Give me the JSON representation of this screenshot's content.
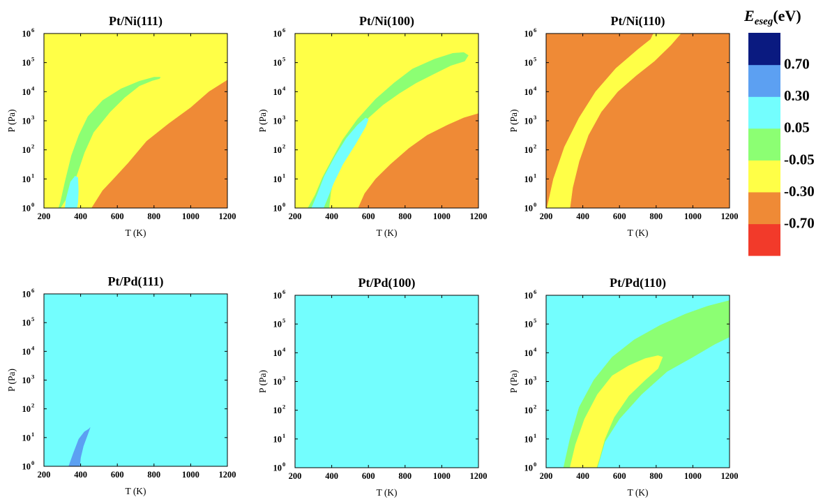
{
  "chart_data": {
    "type": "heatmap",
    "x_tick_labels": [
      "200",
      "400",
      "600",
      "800",
      "1000",
      "1200"
    ],
    "y_tick_base": "10",
    "y_tick_exponents": [
      "0",
      "1",
      "2",
      "3",
      "4",
      "5",
      "6"
    ],
    "xlim": [
      200,
      1200
    ],
    "ylim": [
      1,
      1000000
    ],
    "yscale": "log",
    "colorbar": {
      "title_symbol": "E",
      "title_subscript": "eseg",
      "title_unit": "(eV)",
      "bins": [
        {
          "color": "#F23A2A",
          "range": "< -0.70"
        },
        {
          "color": "#EF8A36",
          "range": "-0.70 to -0.30"
        },
        {
          "color": "#FFFF47",
          "range": "-0.30 to -0.05"
        },
        {
          "color": "#8CFF73",
          "range": "-0.05 to 0.05"
        },
        {
          "color": "#73FEFE",
          "range": "0.05 to 0.30"
        },
        {
          "color": "#5CA0F2",
          "range": "0.30 to 0.70"
        },
        {
          "color": "#0A1A80",
          "range": "> 0.70"
        }
      ],
      "boundary_labels": [
        "0.70",
        "0.30",
        "0.05",
        "-0.05",
        "-0.30",
        "-0.70"
      ]
    },
    "panels": [
      {
        "id": "pt-ni-111",
        "title": "Pt/Ni(111)",
        "xlabel": "T (K)",
        "ylabel": "P (Pa)",
        "background": "#FFFF47",
        "regions": [
          {
            "color": "#EF8A36",
            "polygon": [
              [
                460,
                0
              ],
              [
                520,
                0.6
              ],
              [
                580,
                1.0
              ],
              [
                660,
                1.55
              ],
              [
                760,
                2.3
              ],
              [
                880,
                2.9
              ],
              [
                1000,
                3.45
              ],
              [
                1100,
                4.0
              ],
              [
                1200,
                4.4
              ],
              [
                1200,
                0
              ]
            ]
          },
          {
            "color": "#8CFF73",
            "polygon": [
              [
                290,
                0
              ],
              [
                330,
                0.4
              ],
              [
                380,
                1.15
              ],
              [
                420,
                1.9
              ],
              [
                470,
                2.6
              ],
              [
                560,
                3.3
              ],
              [
                640,
                3.8
              ],
              [
                720,
                4.2
              ],
              [
                790,
                4.38
              ],
              [
                830,
                4.45
              ],
              [
                835,
                4.5
              ],
              [
                800,
                4.5
              ],
              [
                720,
                4.36
              ],
              [
                620,
                4.1
              ],
              [
                520,
                3.7
              ],
              [
                440,
                3.15
              ],
              [
                390,
                2.5
              ],
              [
                350,
                1.8
              ],
              [
                315,
                0.9
              ],
              [
                290,
                0.2
              ],
              [
                280,
                0
              ]
            ]
          },
          {
            "color": "#73FEFE",
            "polygon": [
              [
                315,
                0
              ],
              [
                320,
                0.3
              ],
              [
                345,
                0.9
              ],
              [
                370,
                1.1
              ],
              [
                385,
                1.05
              ],
              [
                388,
                0.6
              ],
              [
                385,
                0.2
              ],
              [
                380,
                0
              ]
            ]
          }
        ]
      },
      {
        "id": "pt-ni-100",
        "title": "Pt/Ni(100)",
        "xlabel": "T (K)",
        "ylabel": "P (Pa)",
        "background": "#FFFF47",
        "regions": [
          {
            "color": "#EF8A36",
            "polygon": [
              [
                545,
                0
              ],
              [
                580,
                0.5
              ],
              [
                640,
                1.0
              ],
              [
                720,
                1.5
              ],
              [
                820,
                2.05
              ],
              [
                920,
                2.5
              ],
              [
                1030,
                2.85
              ],
              [
                1120,
                3.1
              ],
              [
                1200,
                3.25
              ],
              [
                1200,
                0
              ]
            ]
          },
          {
            "color": "#8CFF73",
            "polygon": [
              [
                270,
                0
              ],
              [
                310,
                0.45
              ],
              [
                350,
                1.05
              ],
              [
                400,
                1.65
              ],
              [
                460,
                2.35
              ],
              [
                540,
                3.05
              ],
              [
                640,
                3.75
              ],
              [
                740,
                4.3
              ],
              [
                840,
                4.78
              ],
              [
                960,
                5.12
              ],
              [
                1060,
                5.32
              ],
              [
                1120,
                5.35
              ],
              [
                1145,
                5.25
              ],
              [
                1125,
                5.05
              ],
              [
                1050,
                4.9
              ],
              [
                960,
                4.62
              ],
              [
                860,
                4.3
              ],
              [
                770,
                3.95
              ],
              [
                680,
                3.55
              ],
              [
                600,
                3.1
              ],
              [
                520,
                2.55
              ],
              [
                460,
                1.9
              ],
              [
                420,
                1.25
              ],
              [
                395,
                0.55
              ],
              [
                385,
                0
              ]
            ]
          },
          {
            "color": "#73FEFE",
            "polygon": [
              [
                290,
                0
              ],
              [
                320,
                0.45
              ],
              [
                360,
                1.1
              ],
              [
                420,
                1.8
              ],
              [
                480,
                2.4
              ],
              [
                540,
                2.85
              ],
              [
                585,
                3.1
              ],
              [
                600,
                3.05
              ],
              [
                585,
                2.8
              ],
              [
                530,
                2.2
              ],
              [
                460,
                1.5
              ],
              [
                410,
                0.85
              ],
              [
                375,
                0.3
              ],
              [
                355,
                0
              ]
            ]
          }
        ]
      },
      {
        "id": "pt-ni-110",
        "title": "Pt/Ni(110)",
        "xlabel": "T (K)",
        "ylabel": "P (Pa)",
        "background": "#EF8A36",
        "regions": [
          {
            "color": "#FFFF47",
            "polygon": [
              [
                205,
                0
              ],
              [
                240,
                1.0
              ],
              [
                300,
                2.1
              ],
              [
                380,
                3.1
              ],
              [
                470,
                4.0
              ],
              [
                580,
                4.8
              ],
              [
                700,
                5.45
              ],
              [
                770,
                5.8
              ],
              [
                785,
                6
              ],
              [
                935,
                6
              ],
              [
                880,
                5.6
              ],
              [
                790,
                5.05
              ],
              [
                690,
                4.55
              ],
              [
                590,
                4.0
              ],
              [
                500,
                3.3
              ],
              [
                430,
                2.5
              ],
              [
                380,
                1.6
              ],
              [
                345,
                0.7
              ],
              [
                330,
                0
              ]
            ]
          }
        ]
      },
      {
        "id": "pt-pd-111",
        "title": "Pt/Pd(111)",
        "xlabel": "T (K)",
        "ylabel": "P (Pa)",
        "background": "#73FEFE",
        "regions": [
          {
            "color": "#5CA0F2",
            "polygon": [
              [
                335,
                0
              ],
              [
                360,
                0.45
              ],
              [
                390,
                0.95
              ],
              [
                420,
                1.2
              ],
              [
                445,
                1.3
              ],
              [
                452,
                1.35
              ],
              [
                438,
                1.1
              ],
              [
                415,
                0.7
              ],
              [
                400,
                0.3
              ],
              [
                395,
                0
              ]
            ]
          }
        ]
      },
      {
        "id": "pt-pd-100",
        "title": "Pt/Pd(100)",
        "xlabel": "T (K)",
        "ylabel": "P (Pa)",
        "background": "#73FEFE",
        "regions": []
      },
      {
        "id": "pt-pd-110",
        "title": "Pt/Pd(110)",
        "xlabel": "T (K)",
        "ylabel": "P (Pa)",
        "background": "#73FEFE",
        "regions": [
          {
            "color": "#8CFF73",
            "polygon": [
              [
                295,
                0
              ],
              [
                330,
                1.0
              ],
              [
                380,
                2.1
              ],
              [
                460,
                3.05
              ],
              [
                560,
                3.85
              ],
              [
                680,
                4.45
              ],
              [
                820,
                4.95
              ],
              [
                960,
                5.35
              ],
              [
                1080,
                5.62
              ],
              [
                1200,
                5.82
              ],
              [
                1200,
                4.55
              ],
              [
                1120,
                4.3
              ],
              [
                1000,
                3.85
              ],
              [
                860,
                3.35
              ],
              [
                720,
                2.55
              ],
              [
                600,
                1.7
              ],
              [
                520,
                0.9
              ],
              [
                480,
                0
              ]
            ]
          },
          {
            "color": "#FFFF47",
            "polygon": [
              [
                330,
                0
              ],
              [
                360,
                0.8
              ],
              [
                410,
                1.7
              ],
              [
                480,
                2.55
              ],
              [
                560,
                3.2
              ],
              [
                650,
                3.55
              ],
              [
                740,
                3.8
              ],
              [
                810,
                3.9
              ],
              [
                835,
                3.85
              ],
              [
                810,
                3.45
              ],
              [
                740,
                3.05
              ],
              [
                650,
                2.5
              ],
              [
                570,
                1.75
              ],
              [
                520,
                1.0
              ],
              [
                490,
                0.3
              ],
              [
                475,
                0
              ]
            ]
          }
        ]
      }
    ]
  }
}
